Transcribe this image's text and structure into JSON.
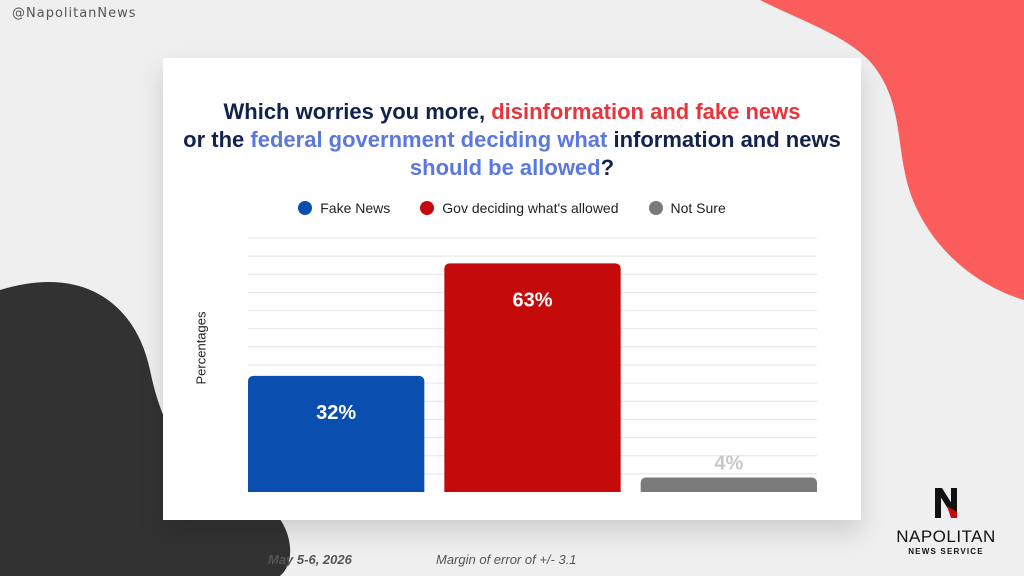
{
  "handle": "@NapolitanNews",
  "title": {
    "parts": [
      {
        "text": "Which worries you more, ",
        "color": "dark"
      },
      {
        "text": "disinformation and fake news",
        "color": "red"
      },
      {
        "text": " or the ",
        "color": "dark"
      },
      {
        "text": "federal government deciding what",
        "color": "blue"
      },
      {
        "text": " information and news ",
        "color": "dark"
      },
      {
        "text": "should be allowed",
        "color": "blue"
      },
      {
        "text": "?",
        "color": "dark"
      }
    ]
  },
  "footer": {
    "date": "May 5-6, 2026",
    "margin": "Margin of error of +/- 3.1"
  },
  "logo": {
    "name": "NAPOLITAN",
    "sub": "NEWS SERVICE"
  },
  "colors": {
    "fake_news": "#0a4fb0",
    "gov": "#c40a0a",
    "not_sure": "#7a7a7a",
    "title_dark": "#12224d",
    "title_red": "#e8343c",
    "title_blue": "#5b78e0",
    "accent_blob": "#fb5c5c",
    "dark_blob": "#323232"
  },
  "chart_data": {
    "type": "bar",
    "categories": [
      "Fake News",
      "Gov deciding what's allowed",
      "Not Sure"
    ],
    "values": [
      32,
      63,
      4
    ],
    "value_labels": [
      "32%",
      "63%",
      "4%"
    ],
    "legend": [
      "Fake News",
      "Gov deciding what's allowed",
      "Not Sure"
    ],
    "legend_position": "top",
    "ylabel": "Percentages",
    "ylim": [
      0,
      70
    ],
    "grid": true,
    "colors": [
      "#0a4fb0",
      "#c40a0a",
      "#7a7a7a"
    ]
  }
}
